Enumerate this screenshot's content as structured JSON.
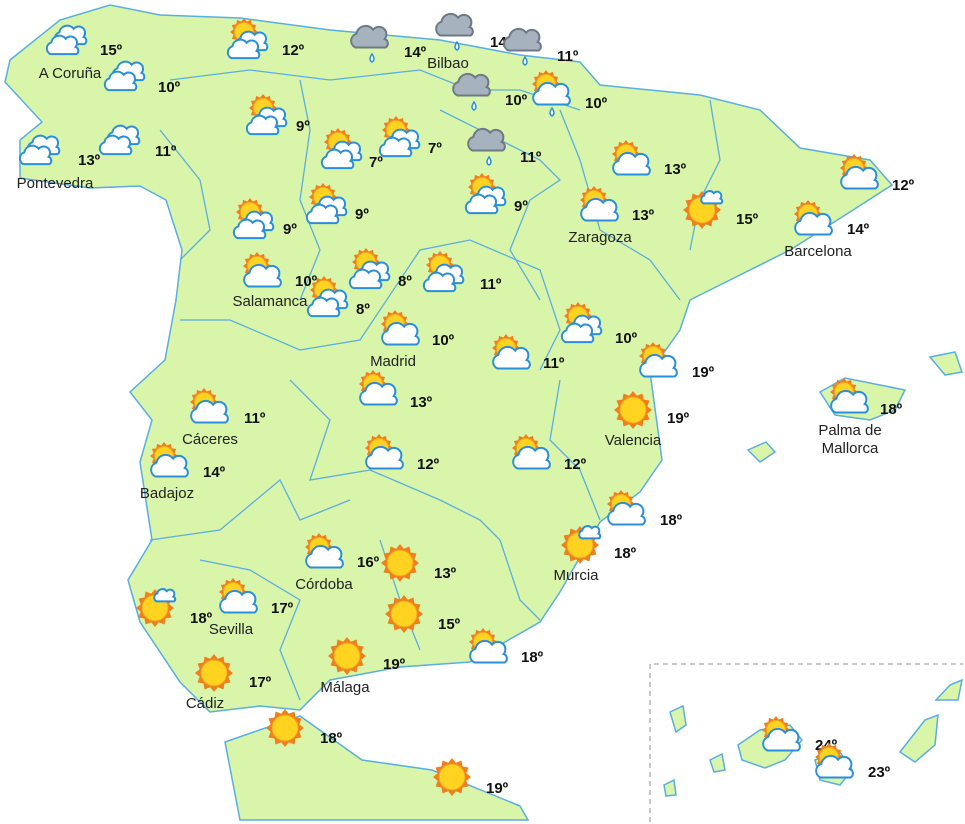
{
  "stations": [
    {
      "icon": "clouds",
      "temp": "15º",
      "name": "A Coruña"
    },
    {
      "icon": "clouds",
      "temp": "10º"
    },
    {
      "icon": "clouds",
      "temp": "13º",
      "name": "Pontevedra"
    },
    {
      "icon": "clouds",
      "temp": "11º"
    },
    {
      "icon": "sun-clouds",
      "temp": "12º"
    },
    {
      "icon": "rain",
      "temp": "14º"
    },
    {
      "icon": "rain",
      "temp": "14º",
      "name": "Bilbao"
    },
    {
      "icon": "rain",
      "temp": "11º"
    },
    {
      "icon": "rain",
      "temp": "10º"
    },
    {
      "icon": "sun-rain",
      "temp": "10º"
    },
    {
      "icon": "sun-clouds",
      "temp": "9º"
    },
    {
      "icon": "sun-clouds",
      "temp": "7º"
    },
    {
      "icon": "sun-clouds",
      "temp": "7º"
    },
    {
      "icon": "rain",
      "temp": "11º"
    },
    {
      "icon": "sun-cloud",
      "temp": "13º"
    },
    {
      "icon": "sun-clouds",
      "temp": "9º"
    },
    {
      "icon": "sun-clouds",
      "temp": "9º"
    },
    {
      "icon": "sun-clouds",
      "temp": "9º"
    },
    {
      "icon": "sun-cloud",
      "temp": "13º",
      "name": "Zaragoza"
    },
    {
      "icon": "sun-small-cloud",
      "temp": "15º"
    },
    {
      "icon": "sun-cloud",
      "temp": "12º"
    },
    {
      "icon": "sun-cloud",
      "temp": "14º",
      "name": "Barcelona"
    },
    {
      "icon": "sun-cloud",
      "temp": "10º",
      "name": "Salamanca"
    },
    {
      "icon": "sun-clouds",
      "temp": "8º"
    },
    {
      "icon": "sun-clouds",
      "temp": "11º"
    },
    {
      "icon": "sun-clouds",
      "temp": "8º"
    },
    {
      "icon": "sun-clouds",
      "temp": "10º"
    },
    {
      "icon": "sun-cloud",
      "temp": "10º",
      "name": "Madrid"
    },
    {
      "icon": "sun-cloud",
      "temp": "11º"
    },
    {
      "icon": "sun-cloud",
      "temp": "19º"
    },
    {
      "icon": "sun",
      "temp": "19º",
      "name": "Valencia"
    },
    {
      "icon": "sun-cloud",
      "temp": "18º",
      "name": [
        "Palma de",
        "Mallorca"
      ]
    },
    {
      "icon": "sun-cloud",
      "temp": "11º",
      "name": "Cáceres"
    },
    {
      "icon": "sun-cloud",
      "temp": "13º"
    },
    {
      "icon": "sun-cloud",
      "temp": "12º"
    },
    {
      "icon": "sun-cloud",
      "temp": "12º"
    },
    {
      "icon": "sun-cloud",
      "temp": "14º",
      "name": "Badajoz"
    },
    {
      "icon": "sun-cloud",
      "temp": "18º"
    },
    {
      "icon": "sun-small-cloud",
      "temp": "18º",
      "name": "Murcia"
    },
    {
      "icon": "sun-cloud",
      "temp": "16º",
      "name": "Córdoba"
    },
    {
      "icon": "sun",
      "temp": "13º"
    },
    {
      "icon": "sun",
      "temp": "15º"
    },
    {
      "icon": "sun-small-cloud",
      "temp": "18º"
    },
    {
      "icon": "sun-cloud",
      "temp": "17º",
      "name": "Sevilla"
    },
    {
      "icon": "sun-cloud",
      "temp": "18º"
    },
    {
      "icon": "sun",
      "temp": "19º",
      "name": "Málaga"
    },
    {
      "icon": "sun",
      "temp": "17º",
      "name": "Cádiz"
    },
    {
      "icon": "sun",
      "temp": "18º"
    },
    {
      "icon": "sun",
      "temp": "19º"
    },
    {
      "icon": "sun-cloud",
      "temp": "24º"
    },
    {
      "icon": "sun-cloud",
      "temp": "23º"
    }
  ]
}
